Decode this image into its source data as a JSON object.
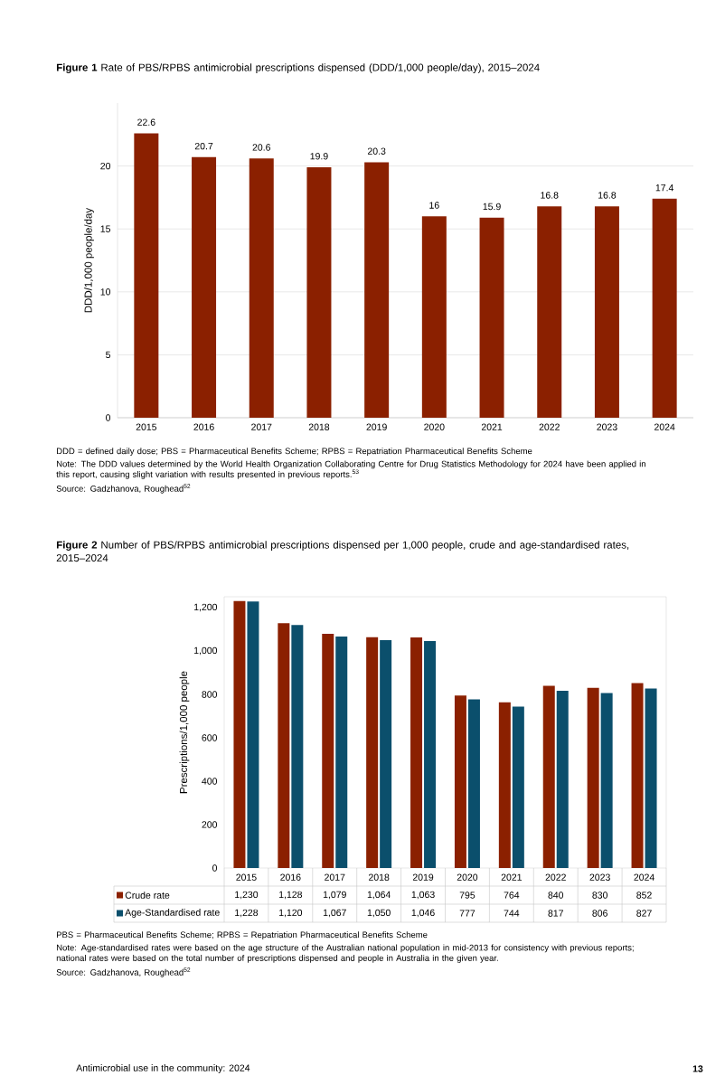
{
  "chart_data": [
    {
      "type": "bar",
      "title": "**Figure 1**   Rate of PBS/RPBS antimicrobial prescriptions dispensed (DDD/1,000 people/day), 2015–2024",
      "ylabel": "DDD/1,000 people/day",
      "categories": [
        "2015",
        "2016",
        "2017",
        "2018",
        "2019",
        "2020",
        "2021",
        "2022",
        "2023",
        "2024"
      ],
      "values": [
        22.6,
        20.7,
        20.6,
        19.9,
        20.3,
        16,
        15.9,
        16.8,
        16.8,
        17.4
      ],
      "color": "#8b2000",
      "ylim": [
        0,
        25
      ],
      "yticks": [
        0,
        5,
        10,
        15,
        20
      ],
      "grid": "y",
      "data_labels": true,
      "annotations": [
        "DDD = defined daily dose; PBS = Pharmaceutical Benefits Scheme; RPBS = Repatriation Pharmaceutical Benefits Scheme",
        "Note: The DDD values determined by the World Health Organization Collaborating Centre for Drug Statistics Methodology for 2024 have been applied in this report, causing slight variation with results presented in previous reports.$^{53}$",
        "Source: Gadzhanova, Roughead$^{52}$"
      ]
    },
    {
      "type": "bar",
      "title": "**Figure 2**   Number of PBS/RPBS antimicrobial prescriptions dispensed per 1,000 people, crude and age-standardised rates, 2015–2024",
      "ylabel": "Prescriptions/1,000 people",
      "categories": [
        "2015",
        "2016",
        "2017",
        "2018",
        "2019",
        "2020",
        "2021",
        "2022",
        "2023",
        "2024"
      ],
      "series": [
        {
          "name": "Crude rate",
          "color": "#8b2000",
          "values": [
            1230,
            1128,
            1079,
            1064,
            1063,
            795,
            764,
            840,
            830,
            852
          ],
          "value_labels": [
            "1,230",
            "1,128",
            "1,079",
            "1,064",
            "1,063",
            "795",
            "764",
            "840",
            "830",
            "852"
          ]
        },
        {
          "name": "Age-Standardised rate",
          "color": "#0b4f6c",
          "values": [
            1228,
            1120,
            1067,
            1050,
            1046,
            777,
            744,
            817,
            806,
            827
          ],
          "value_labels": [
            "1,228",
            "1,120",
            "1,067",
            "1,050",
            "1,046",
            "777",
            "744",
            "817",
            "806",
            "827"
          ]
        }
      ],
      "ylim": [
        0,
        1250
      ],
      "yticks": [
        0,
        200,
        400,
        600,
        800,
        {
          "value": 1000,
          "label": "1,000"
        },
        {
          "value": 1200,
          "label": "1,200"
        }
      ],
      "legend": "bottom",
      "annotations": [
        "PBS = Pharmaceutical Benefits Scheme; RPBS = Repatriation Pharmaceutical Benefits Scheme",
        "Note: Age-standardised rates were based on the age structure of the Australian national population in mid-2013 for consistency with previous reports; national rates were based on the total number of prescriptions dispensed and people in Australia in the given year.",
        "Source: Gadzhanova, Roughead$^{52}$",
        "Antimicrobial use in the community: 2024",
        "13"
      ]
    }
  ]
}
